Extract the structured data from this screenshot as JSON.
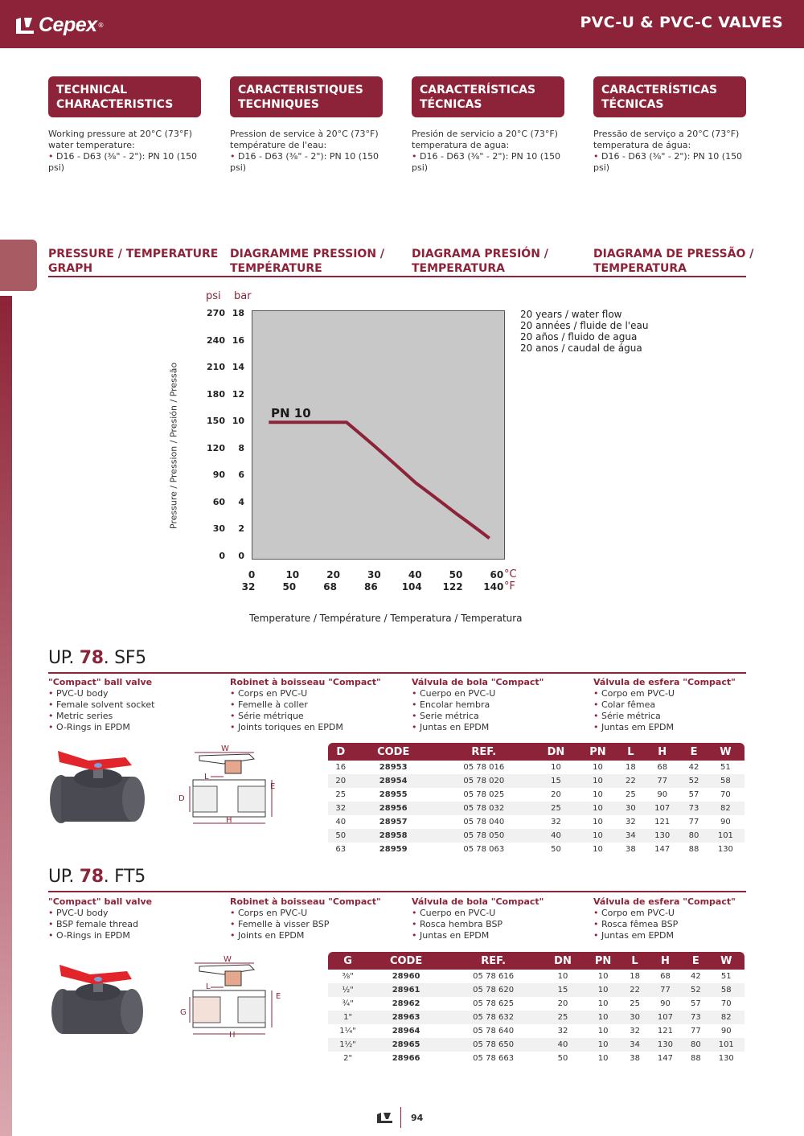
{
  "header": {
    "brand": "Cepex",
    "reg": "®",
    "title": "PVC-U & PVC-C VALVES"
  },
  "tech": [
    {
      "title": "TECHNICAL CHARACTERISTICS",
      "text": "Working pressure at 20°C (73°F) water temperature:",
      "bullet": "D16 - D63 (⅜\" - 2\"):  PN 10 (150 psi)"
    },
    {
      "title": "CARACTERISTIQUES TECHNIQUES",
      "text": "Pression de service à 20°C (73°F) température de l'eau:",
      "bullet": "D16 - D63 (⅜\" - 2\"):  PN 10 (150 psi)"
    },
    {
      "title": "CARACTERÍSTICAS TÉCNICAS",
      "text": "Presión de servicio a 20°C (73°F) temperatura de agua:",
      "bullet": "D16 - D63 (⅜\" - 2\"):  PN 10 (150 psi)"
    },
    {
      "title": "CARACTERÍSTICAS TÉCNICAS",
      "text": "Pressão de serviço a 20°C (73°F) temperatura de água:",
      "bullet": "D16 - D63 (⅜\" - 2\"):  PN 10 (150 psi)"
    }
  ],
  "graph_heads": [
    "PRESSURE / TEMPERATURE GRAPH",
    "DIAGRAMME PRESSION / TEMPÉRATURE",
    "DIAGRAMA PRESIÓN / TEMPERATURA",
    "DIAGRAMA DE PRESSÃO / TEMPERATURA"
  ],
  "chart_data": {
    "type": "line",
    "y_units": {
      "left": "psi",
      "right": "bar"
    },
    "y_ticks_psi": [
      "270",
      "240",
      "210",
      "180",
      "150",
      "120",
      "90",
      "60",
      "30",
      "0"
    ],
    "y_ticks_bar": [
      "18",
      "16",
      "14",
      "12",
      "10",
      "8",
      "6",
      "4",
      "2",
      "0"
    ],
    "ylim_bar": [
      0,
      18
    ],
    "x_ticks_c": [
      "0",
      "10",
      "20",
      "30",
      "40",
      "50",
      "60"
    ],
    "x_ticks_f": [
      "32",
      "50",
      "68",
      "86",
      "104",
      "122",
      "140"
    ],
    "x_units": {
      "c": "°C",
      "f": "°F"
    },
    "xlim_c": [
      0,
      62
    ],
    "ylabel": "Pressure / Pression / Presión / Pressão",
    "xlabel": "Temperature / Température / Temperatura / Temperatura",
    "legend": [
      "20 years / water flow",
      "20 années / fluide de l'eau",
      "20 años / fluido de agua",
      "20 anos / caudal de água"
    ],
    "series": [
      {
        "name": "PN 10",
        "color": "#8d2338",
        "x": [
          4,
          23,
          30,
          40,
          50,
          58
        ],
        "y": [
          10,
          10,
          8.2,
          5.5,
          3.2,
          1.4
        ]
      }
    ],
    "grid": false
  },
  "sf5": {
    "code_pre": "UP.",
    "code_num": "78",
    "code_post": ". SF5",
    "cols": [
      {
        "head": "\"Compact\" ball valve",
        "items": [
          "PVC-U body",
          "Female solvent socket",
          "Metric series",
          "O-Rings in EPDM"
        ]
      },
      {
        "head": "Robinet à boisseau \"Compact\"",
        "items": [
          "Corps en PVC-U",
          "Femelle à coller",
          "Série métrique",
          "Joints toriques en EPDM"
        ]
      },
      {
        "head": "Válvula de bola \"Compact\"",
        "items": [
          "Cuerpo en PVC-U",
          "Encolar hembra",
          "Serie métrica",
          "Juntas en EPDM"
        ]
      },
      {
        "head": "Válvula de esfera \"Compact\"",
        "items": [
          "Corpo em PVC-U",
          "Colar fêmea",
          "Série métrica",
          "Juntas em EPDM"
        ]
      }
    ],
    "table": {
      "headers": [
        "D",
        "CODE",
        "REF.",
        "DN",
        "PN",
        "L",
        "H",
        "E",
        "W"
      ],
      "rows": [
        [
          "16",
          "28953",
          "05 78 016",
          "10",
          "10",
          "18",
          "68",
          "42",
          "51"
        ],
        [
          "20",
          "28954",
          "05 78 020",
          "15",
          "10",
          "22",
          "77",
          "52",
          "58"
        ],
        [
          "25",
          "28955",
          "05 78 025",
          "20",
          "10",
          "25",
          "90",
          "57",
          "70"
        ],
        [
          "32",
          "28956",
          "05 78 032",
          "25",
          "10",
          "30",
          "107",
          "73",
          "82"
        ],
        [
          "40",
          "28957",
          "05 78 040",
          "32",
          "10",
          "32",
          "121",
          "77",
          "90"
        ],
        [
          "50",
          "28958",
          "05 78 050",
          "40",
          "10",
          "34",
          "130",
          "80",
          "101"
        ],
        [
          "63",
          "28959",
          "05 78 063",
          "50",
          "10",
          "38",
          "147",
          "88",
          "130"
        ]
      ]
    },
    "dims": {
      "w": "W",
      "l": "L",
      "e": "E",
      "d": "D",
      "h": "H"
    }
  },
  "ft5": {
    "code_pre": "UP.",
    "code_num": "78",
    "code_post": ". FT5",
    "cols": [
      {
        "head": "\"Compact\" ball valve",
        "items": [
          "PVC-U body",
          "BSP female thread",
          "O-Rings in EPDM"
        ]
      },
      {
        "head": "Robinet à boisseau \"Compact\"",
        "items": [
          "Corps en PVC-U",
          "Femelle à visser BSP",
          "Joints en EPDM"
        ]
      },
      {
        "head": "Válvula de bola \"Compact\"",
        "items": [
          "Cuerpo en PVC-U",
          "Rosca hembra BSP",
          "Juntas en EPDM"
        ]
      },
      {
        "head": "Válvula de esfera \"Compact\"",
        "items": [
          "Corpo em PVC-U",
          "Rosca fêmea BSP",
          "Juntas em EPDM"
        ]
      }
    ],
    "table": {
      "headers": [
        "G",
        "CODE",
        "REF.",
        "DN",
        "PN",
        "L",
        "H",
        "E",
        "W"
      ],
      "rows": [
        [
          "⅜\"",
          "28960",
          "05 78 616",
          "10",
          "10",
          "18",
          "68",
          "42",
          "51"
        ],
        [
          "½\"",
          "28961",
          "05 78 620",
          "15",
          "10",
          "22",
          "77",
          "52",
          "58"
        ],
        [
          "¾\"",
          "28962",
          "05 78 625",
          "20",
          "10",
          "25",
          "90",
          "57",
          "70"
        ],
        [
          "1\"",
          "28963",
          "05 78 632",
          "25",
          "10",
          "30",
          "107",
          "73",
          "82"
        ],
        [
          "1¼\"",
          "28964",
          "05 78 640",
          "32",
          "10",
          "32",
          "121",
          "77",
          "90"
        ],
        [
          "1½\"",
          "28965",
          "05 78 650",
          "40",
          "10",
          "34",
          "130",
          "80",
          "101"
        ],
        [
          "2\"",
          "28966",
          "05 78 663",
          "50",
          "10",
          "38",
          "147",
          "88",
          "130"
        ]
      ]
    },
    "dims": {
      "w": "W",
      "l": "L",
      "e": "E",
      "g": "G",
      "h": "H"
    }
  },
  "footer": {
    "page": "94"
  }
}
